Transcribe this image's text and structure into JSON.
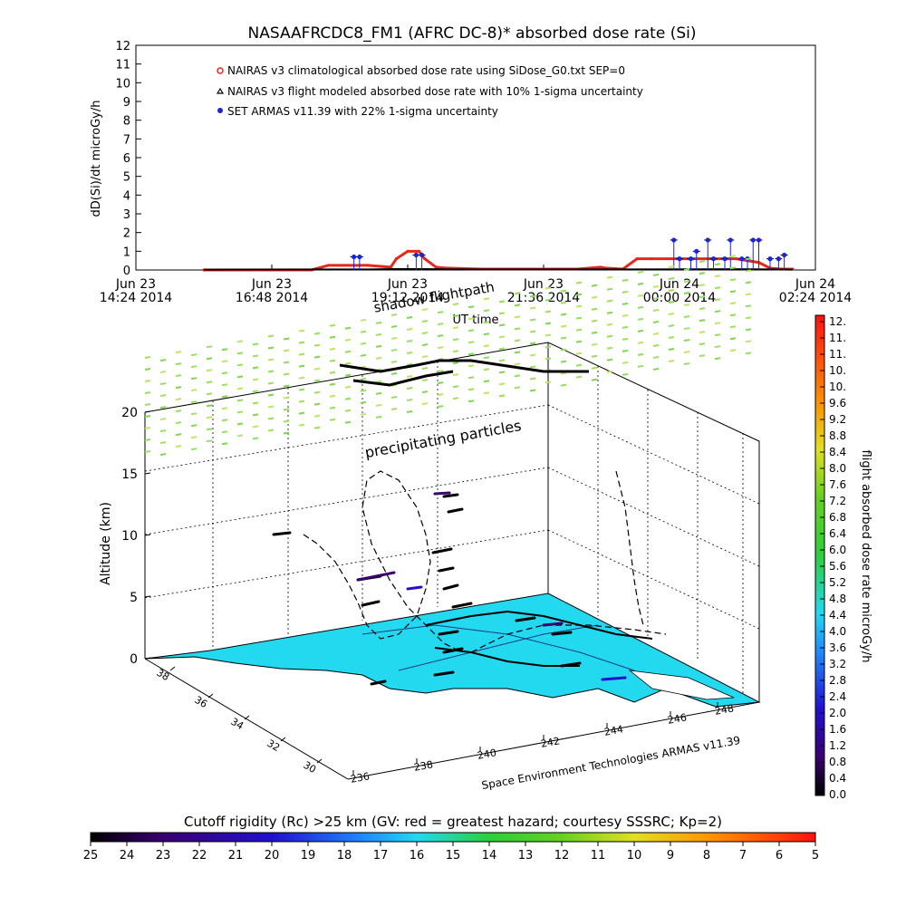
{
  "chart_data": [
    {
      "type": "line",
      "title": "NASAAFRCDC8_FM1 (AFRC DC-8)* absorbed dose rate (Si)",
      "ylabel": "dD(Si)/dt microGy/h",
      "xlabel": "UT time",
      "ylim": [
        0,
        12
      ],
      "y_ticks": [
        "0",
        "1",
        "2",
        "3",
        "4",
        "5",
        "6",
        "7",
        "8",
        "9",
        "10",
        "11",
        "12"
      ],
      "x_ticks": [
        {
          "line1": "Jun 23",
          "line2": "14:24 2014"
        },
        {
          "line1": "Jun 23",
          "line2": "16:48 2014"
        },
        {
          "line1": "Jun 23",
          "line2": "19:12 2014"
        },
        {
          "line1": "Jun 23",
          "line2": "21:36 2014"
        },
        {
          "line1": "Jun 24",
          "line2": "00:00 2014"
        },
        {
          "line1": "Jun 24",
          "line2": "02:24 2014"
        }
      ],
      "x_hours_range": [
        14.4,
        26.4
      ],
      "legend": [
        {
          "marker": "circle",
          "color": "#e8261b",
          "label": "NAIRAS v3 climatological absorbed dose rate using SiDose_G0.txt SEP=0"
        },
        {
          "marker": "triangle",
          "color": "#000000",
          "label": "NAIRAS v3 flight modeled absorbed dose rate with 10% 1-sigma uncertainty"
        },
        {
          "marker": "dot",
          "color": "#1a24e0",
          "label": "SET ARMAS v11.39 with 22% 1-sigma uncertainty"
        }
      ],
      "series": [
        {
          "name": "NAIRAS v3 climatological absorbed dose rate using SiDose_G0.txt SEP=0",
          "color": "#e8261b",
          "x": [
            15.6,
            17.5,
            17.8,
            18.5,
            18.9,
            19.0,
            19.2,
            19.4,
            19.5,
            19.7,
            19.9,
            20.5,
            22.2,
            22.6,
            22.7,
            23.0,
            23.25,
            23.5,
            24.0,
            24.5,
            25.0,
            25.4,
            25.6,
            25.8,
            26.0
          ],
          "y": [
            0,
            0,
            0.25,
            0.25,
            0.15,
            0.6,
            1.0,
            1.0,
            0.6,
            0.15,
            0.1,
            0.05,
            0.05,
            0.15,
            0.1,
            0.05,
            0.6,
            0.6,
            0.6,
            0.6,
            0.6,
            0.4,
            0.1,
            0.05,
            0.05
          ]
        },
        {
          "name": "NAIRAS v3 flight modeled absorbed dose rate with 10% 1-sigma uncertainty",
          "color": "#000000",
          "x": [
            15.6,
            18.5,
            19.0,
            19.5,
            20.0,
            23.0,
            25.0,
            25.7,
            26.0
          ],
          "y": [
            0.02,
            0.03,
            0.05,
            0.05,
            0.03,
            0.03,
            0.04,
            0.03,
            0.02
          ]
        },
        {
          "name": "SET ARMAS v11.39 with 22% 1-sigma uncertainty",
          "color": "#1a24e0",
          "x": [
            18.25,
            18.35,
            19.35,
            19.45,
            23.9,
            24.0,
            24.2,
            24.3,
            24.5,
            24.6,
            24.8,
            24.9,
            25.1,
            25.2,
            25.3,
            25.4,
            25.6,
            25.75,
            25.85
          ],
          "y": [
            0.7,
            0.7,
            0.8,
            0.8,
            1.6,
            0.6,
            0.6,
            1.0,
            1.6,
            0.6,
            0.6,
            1.6,
            0.6,
            0.6,
            1.6,
            1.6,
            0.6,
            0.6,
            0.8
          ]
        }
      ]
    },
    {
      "type": "scatter",
      "title": "",
      "ylabel": "Altitude (km)",
      "xlabel": "Space Environment Technologies ARMAS v11.39",
      "zlim": [
        0,
        20
      ],
      "z_ticks": [
        "0",
        "5",
        "10",
        "15",
        "20"
      ],
      "lat_ticks": [
        "30",
        "32",
        "34",
        "36",
        "38"
      ],
      "lon_ticks": [
        "236",
        "238",
        "240",
        "242",
        "244",
        "246",
        "248"
      ],
      "annotations": [
        "shadow flightpath",
        "precipitating particles"
      ],
      "colorbar": {
        "label": "flight absorbed dose rate microGy/h",
        "range": [
          0.0,
          12.0
        ],
        "ticks": [
          "0.0",
          "0.4",
          "0.8",
          "1.2",
          "1.6",
          "2.0",
          "2.4",
          "2.8",
          "3.2",
          "3.6",
          "4.0",
          "4.4",
          "4.8",
          "5.2",
          "5.6",
          "6.0",
          "6.4",
          "6.8",
          "7.2",
          "7.6",
          "8.0",
          "8.4",
          "8.8",
          "9.2",
          "9.6",
          "10.",
          "10.",
          "11.",
          "11.",
          "12."
        ],
        "ticks_top": "12."
      },
      "ground_color": "#22d9f0"
    },
    {
      "type": "heatmap",
      "title": "Cutoff rigidity (Rc) >25 km (GV: red = greatest hazard; courtesy SSSRC; Kp=2)",
      "ticks": [
        "25",
        "24",
        "23",
        "22",
        "21",
        "20",
        "19",
        "18",
        "17",
        "16",
        "15",
        "14",
        "13",
        "12",
        "11",
        "10",
        "9",
        "8",
        "7",
        "6",
        "5"
      ]
    }
  ]
}
